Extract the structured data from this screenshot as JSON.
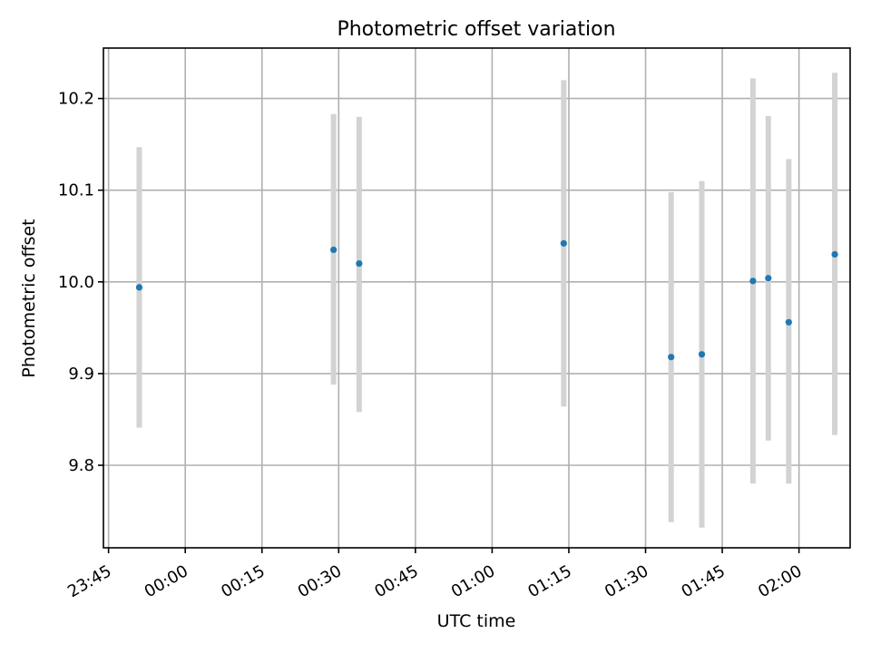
{
  "chart_data": {
    "type": "scatter",
    "title": "Photometric offset variation",
    "xlabel": "UTC time",
    "ylabel": "Photometric offset",
    "x_axis": {
      "kind": "time",
      "range": [
        "23:44",
        "02:10"
      ],
      "ticks": [
        "23:45",
        "00:00",
        "00:15",
        "00:30",
        "00:45",
        "01:00",
        "01:15",
        "01:30",
        "01:45",
        "02:00"
      ]
    },
    "y_axis": {
      "range": [
        9.71,
        10.255
      ],
      "ticks": [
        9.8,
        9.9,
        10.0,
        10.1,
        10.2
      ],
      "tick_labels": [
        "9.8",
        "9.9",
        "10.0",
        "10.1",
        "10.2"
      ]
    },
    "grid": true,
    "colors": {
      "marker": "#1f77b4",
      "errorbar": "#d3d3d3"
    },
    "points": [
      {
        "time": "23:51",
        "y": 9.994,
        "ylow": 9.841,
        "yhigh": 10.147
      },
      {
        "time": "00:29",
        "y": 10.035,
        "ylow": 9.888,
        "yhigh": 10.183
      },
      {
        "time": "00:34",
        "y": 10.02,
        "ylow": 9.858,
        "yhigh": 10.18
      },
      {
        "time": "01:14",
        "y": 10.042,
        "ylow": 9.864,
        "yhigh": 10.22
      },
      {
        "time": "01:35",
        "y": 9.918,
        "ylow": 9.738,
        "yhigh": 10.098
      },
      {
        "time": "01:41",
        "y": 9.921,
        "ylow": 9.732,
        "yhigh": 10.11
      },
      {
        "time": "01:51",
        "y": 10.001,
        "ylow": 9.78,
        "yhigh": 10.222
      },
      {
        "time": "01:54",
        "y": 10.004,
        "ylow": 9.827,
        "yhigh": 10.181
      },
      {
        "time": "01:58",
        "y": 9.956,
        "ylow": 9.78,
        "yhigh": 10.134
      },
      {
        "time": "02:07",
        "y": 10.03,
        "ylow": 9.833,
        "yhigh": 10.228
      }
    ]
  }
}
